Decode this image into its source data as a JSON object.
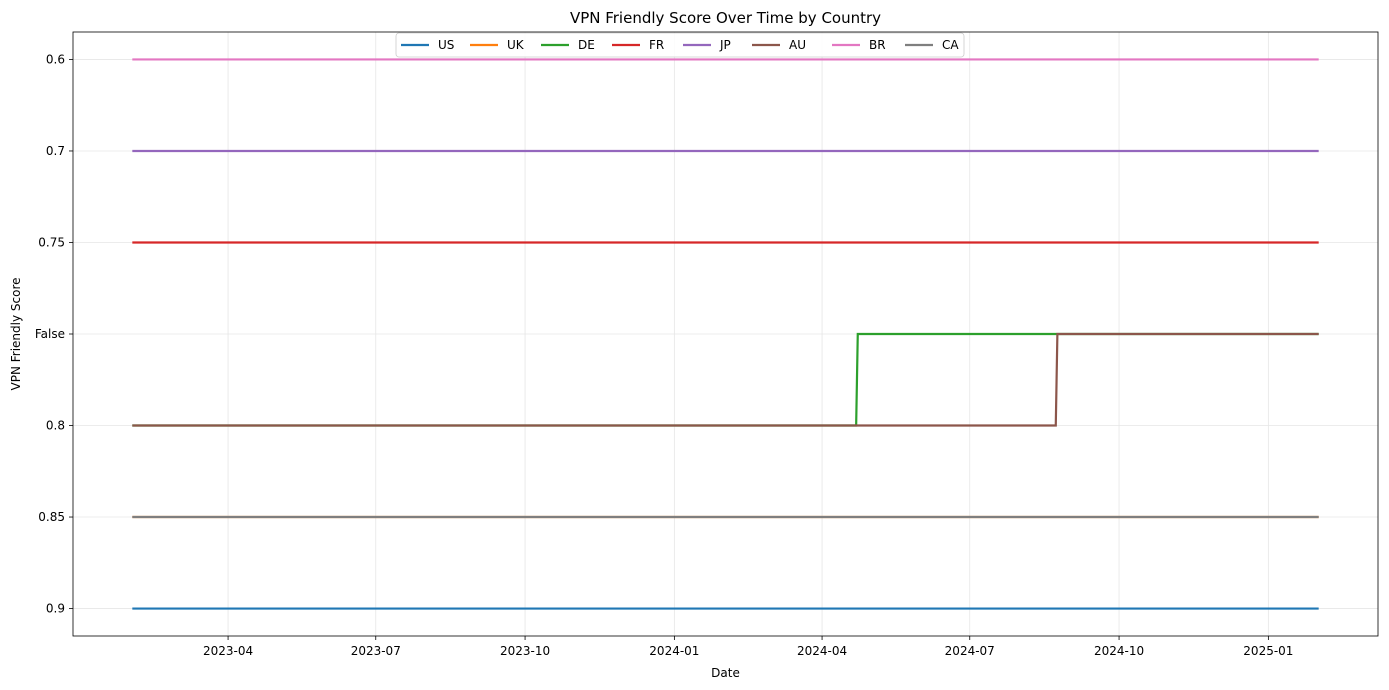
{
  "chart_data": {
    "type": "line",
    "title": "VPN Friendly Score Over Time by Country",
    "xlabel": "Date",
    "ylabel": "VPN Friendly Score",
    "y_categories": [
      "0.6",
      "0.7",
      "0.75",
      "False",
      "0.8",
      "0.85",
      "0.9"
    ],
    "x_range": [
      "2023-02-01",
      "2025-02-01"
    ],
    "x_ticks": [
      "2023-04",
      "2023-07",
      "2023-10",
      "2024-01",
      "2024-04",
      "2024-07",
      "2024-10",
      "2025-01"
    ],
    "grid": true,
    "legend": {
      "placement": "upper-center",
      "columns": 8
    },
    "series": [
      {
        "name": "US",
        "color": "#1f77b4",
        "points": [
          [
            "2023-02-01",
            "0.9"
          ],
          [
            "2025-02-01",
            "0.9"
          ]
        ]
      },
      {
        "name": "UK",
        "color": "#ff7f0e",
        "points": [
          [
            "2023-02-01",
            "0.85"
          ],
          [
            "2025-02-01",
            "0.85"
          ]
        ]
      },
      {
        "name": "DE",
        "color": "#2ca02c",
        "points": [
          [
            "2023-02-01",
            "0.8"
          ],
          [
            "2024-04-22",
            "0.8"
          ],
          [
            "2024-04-23",
            "False"
          ],
          [
            "2025-02-01",
            "False"
          ]
        ]
      },
      {
        "name": "FR",
        "color": "#d62728",
        "points": [
          [
            "2023-02-01",
            "0.75"
          ],
          [
            "2025-02-01",
            "0.75"
          ]
        ]
      },
      {
        "name": "JP",
        "color": "#9467bd",
        "points": [
          [
            "2023-02-01",
            "0.7"
          ],
          [
            "2025-02-01",
            "0.7"
          ]
        ]
      },
      {
        "name": "AU",
        "color": "#8c564b",
        "points": [
          [
            "2023-02-01",
            "0.8"
          ],
          [
            "2024-08-23",
            "0.8"
          ],
          [
            "2024-08-24",
            "False"
          ],
          [
            "2025-02-01",
            "False"
          ]
        ]
      },
      {
        "name": "BR",
        "color": "#e377c2",
        "points": [
          [
            "2023-02-01",
            "0.6"
          ],
          [
            "2025-02-01",
            "0.6"
          ]
        ]
      },
      {
        "name": "CA",
        "color": "#7f7f7f",
        "points": [
          [
            "2023-02-01",
            "0.85"
          ],
          [
            "2025-02-01",
            "0.85"
          ]
        ]
      }
    ]
  }
}
